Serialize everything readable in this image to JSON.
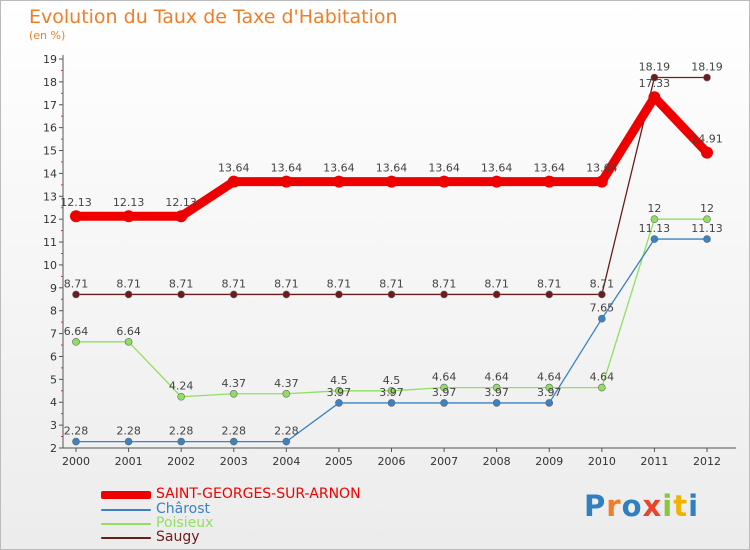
{
  "header": {
    "title": "Evolution du Taux de Taxe d'Habitation",
    "subtitle": "(en %)"
  },
  "logo": {
    "text": "Proxiti",
    "colors": [
      "#2f7fc1",
      "#f07e27",
      "#2f7fc1",
      "#e8462a",
      "#8cc63f",
      "#f0b400",
      "#2f7fc1"
    ]
  },
  "chart_data": {
    "type": "line",
    "title": "Evolution du Taux de Taxe d'Habitation",
    "ylabel": "(en %)",
    "xlabel": "",
    "ylim": [
      2,
      19
    ],
    "yticks": [
      2,
      3,
      4,
      5,
      6,
      7,
      8,
      9,
      10,
      11,
      12,
      13,
      14,
      15,
      16,
      17,
      18,
      19
    ],
    "categories": [
      "2000",
      "2001",
      "2002",
      "2003",
      "2004",
      "2005",
      "2006",
      "2007",
      "2008",
      "2009",
      "2010",
      "2011",
      "2012"
    ],
    "grid": false,
    "legend": "bottom-left",
    "series": [
      {
        "name": "Saugy",
        "color": "#6b1c1c",
        "values": [
          8.71,
          8.71,
          8.71,
          8.71,
          8.71,
          8.71,
          8.71,
          8.71,
          8.71,
          8.71,
          8.71,
          18.19,
          18.19
        ],
        "labels": [
          "8.71",
          "8.71",
          "8.71",
          "8.71",
          "8.71",
          "8.71",
          "8.71",
          "8.71",
          "8.71",
          "8.71",
          "8.71",
          "18.19",
          "18.19"
        ]
      },
      {
        "name": "Poisieux",
        "color": "#8fe060",
        "values": [
          6.64,
          6.64,
          4.24,
          4.37,
          4.37,
          4.5,
          4.5,
          4.64,
          4.64,
          4.64,
          4.64,
          12,
          12
        ],
        "labels": [
          "6.64",
          "6.64",
          "4.24",
          "4.37",
          "4.37",
          "4.5",
          "4.5",
          "4.64",
          "4.64",
          "4.64",
          "4.64",
          "12",
          "12"
        ]
      },
      {
        "name": "Chârost",
        "color": "#3a82c4",
        "values": [
          2.28,
          2.28,
          2.28,
          2.28,
          2.28,
          3.97,
          3.97,
          3.97,
          3.97,
          3.97,
          7.65,
          11.13,
          11.13
        ],
        "labels": [
          "2.28",
          "2.28",
          "2.28",
          "2.28",
          "2.28",
          "3.97",
          "3.97",
          "3.97",
          "3.97",
          "3.97",
          "7.65",
          "11.13",
          "11.13"
        ]
      },
      {
        "name": "SAINT-GEORGES-SUR-ARNON",
        "color": "#ee0000",
        "values": [
          12.13,
          12.13,
          12.13,
          13.64,
          13.64,
          13.64,
          13.64,
          13.64,
          13.64,
          13.64,
          13.64,
          17.33,
          14.91
        ],
        "labels": [
          "12.13",
          "12.13",
          "12.13",
          "13.64",
          "13.64",
          "13.64",
          "13.64",
          "13.64",
          "13.64",
          "13.64",
          "13.64",
          "17.33",
          "14.91"
        ]
      }
    ]
  },
  "legend": {
    "items": [
      {
        "name": "SAINT-GEORGES-SUR-ARNON",
        "color": "#ee0000"
      },
      {
        "name": "Chârost",
        "color": "#3a82c4"
      },
      {
        "name": "Poisieux",
        "color": "#8fe060"
      },
      {
        "name": "Saugy",
        "color": "#6b1c1c"
      }
    ]
  }
}
